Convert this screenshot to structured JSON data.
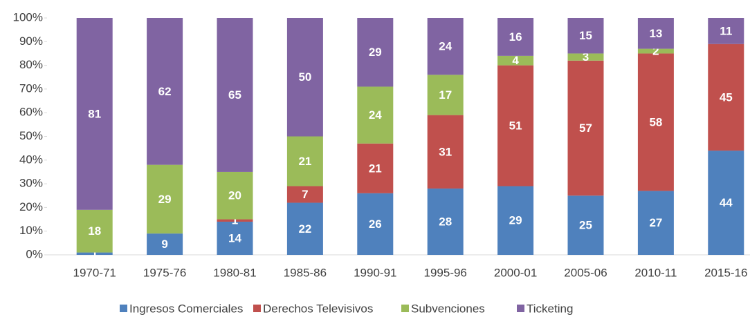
{
  "chart_data": {
    "type": "stacked_bar_100",
    "categories": [
      "1970-71",
      "1975-76",
      "1980-81",
      "1985-86",
      "1990-91",
      "1995-96",
      "2000-01",
      "2005-06",
      "2010-11",
      "2015-16"
    ],
    "series": [
      {
        "name": "Ingresos Comerciales",
        "color": "#4f81bd",
        "values": [
          1,
          9,
          14,
          22,
          26,
          28,
          29,
          25,
          27,
          44
        ]
      },
      {
        "name": "Derechos Televisivos",
        "color": "#c0504d",
        "values": [
          null,
          null,
          1,
          7,
          21,
          31,
          51,
          57,
          58,
          45
        ]
      },
      {
        "name": "Subvenciones",
        "color": "#9bbb59",
        "values": [
          18,
          29,
          20,
          21,
          24,
          17,
          4,
          3,
          2,
          null
        ]
      },
      {
        "name": "Ticketing",
        "color": "#8064a2",
        "values": [
          81,
          62,
          65,
          50,
          29,
          24,
          16,
          15,
          13,
          11
        ]
      }
    ],
    "ylim": [
      0,
      100
    ],
    "yticks": [
      {
        "value": 0,
        "label": "0%"
      },
      {
        "value": 10,
        "label": "10%"
      },
      {
        "value": 20,
        "label": "20%"
      },
      {
        "value": 30,
        "label": "30%"
      },
      {
        "value": 40,
        "label": "40%"
      },
      {
        "value": 50,
        "label": "50%"
      },
      {
        "value": 60,
        "label": "60%"
      },
      {
        "value": 70,
        "label": "70%"
      },
      {
        "value": 80,
        "label": "80%"
      },
      {
        "value": 90,
        "label": "90%"
      },
      {
        "value": 100,
        "label": "100%"
      }
    ],
    "legend": "bottom"
  }
}
